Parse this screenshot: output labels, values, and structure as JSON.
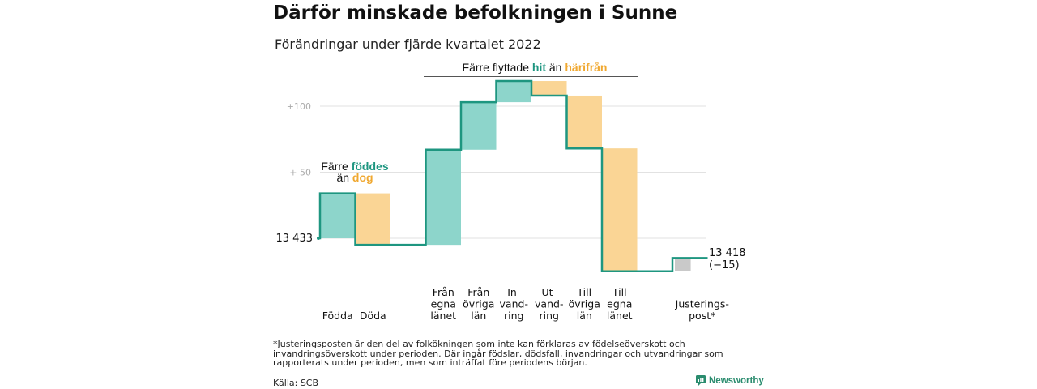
{
  "title": "Därför minskade befolkningen i Sunne",
  "subtitle": "Förändringar under fjärde kvartalet 2022",
  "colors": {
    "increase": "#8dd5cb",
    "decrease": "#fad595",
    "adjustment": "#c9c9c9",
    "line": "#1e9680",
    "teal_text": "#1e9680",
    "orange_text": "#f0a830",
    "grid": "#e2e2e2",
    "tick_text": "#aaaaaa"
  },
  "annotations": {
    "births_deaths": {
      "line1_prefix": "Färre ",
      "line1_teal": "föddes",
      "line2_prefix": "än ",
      "line2_orange": "dog"
    },
    "migration": {
      "prefix": "Färre flyttade ",
      "teal": "hit",
      "middle": " än ",
      "orange": "härifrån"
    }
  },
  "footnote": "*Justeringsposten är den del av folkökningen som inte kan förklaras av födelseöverskott och invandringsöverskott under perioden. Där ingår födslar, dödsfall, invandringar och utvandringar som rapporterats under perioden, men som inträffat före periodens början.",
  "source": "Källa: SCB",
  "brand": "Newsworthy",
  "chart_data": {
    "type": "waterfall",
    "start_label": "13 433",
    "end_label_line1": "13 418",
    "end_label_line2": "(−15)",
    "y_ticks": [
      {
        "value": 50,
        "label": "+ 50"
      },
      {
        "value": 100,
        "label": "+100"
      }
    ],
    "ylim": [
      -25,
      120
    ],
    "steps": [
      {
        "label_lines": [
          "Födda"
        ],
        "delta": 34,
        "kind": "increase"
      },
      {
        "label_lines": [
          "Döda"
        ],
        "delta": -39,
        "kind": "decrease"
      },
      {
        "label_lines": [],
        "delta": 0,
        "kind": "gap"
      },
      {
        "label_lines": [
          "Från",
          "egna",
          "länet"
        ],
        "delta": 72,
        "kind": "increase"
      },
      {
        "label_lines": [
          "Från",
          "övriga",
          "län"
        ],
        "delta": 36,
        "kind": "increase"
      },
      {
        "label_lines": [
          "In-",
          "vand-",
          "ring"
        ],
        "delta": 16,
        "kind": "increase"
      },
      {
        "label_lines": [
          "Ut-",
          "vand-",
          "ring"
        ],
        "delta": -11,
        "kind": "decrease"
      },
      {
        "label_lines": [
          "Till",
          "övriga",
          "län"
        ],
        "delta": -40,
        "kind": "decrease"
      },
      {
        "label_lines": [
          "Till",
          "egna",
          "länet"
        ],
        "delta": -93,
        "kind": "decrease"
      },
      {
        "label_lines": [],
        "delta": 0,
        "kind": "gap"
      },
      {
        "label_lines": [
          "Justerings-",
          "post*"
        ],
        "delta": 10,
        "kind": "adjustment"
      }
    ]
  }
}
